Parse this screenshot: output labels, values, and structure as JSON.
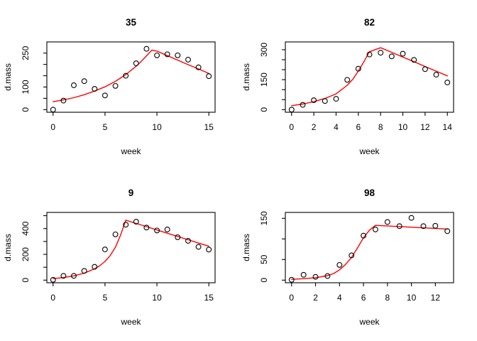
{
  "figure": {
    "background": "#ffffff",
    "point_color": "#000000",
    "fit_line_color": "#ff0000",
    "axis_color": "#000000"
  },
  "chart_data": [
    {
      "type": "scatter",
      "title": "35",
      "xlabel": "week",
      "ylabel": "d.mass",
      "xlim": [
        0,
        15
      ],
      "ylim": [
        0,
        288
      ],
      "grid": false,
      "x_ticks": [
        {
          "v": 0,
          "label": "0"
        },
        {
          "v": 5,
          "label": "5"
        },
        {
          "v": 10,
          "label": "10"
        },
        {
          "v": 15,
          "label": "15"
        }
      ],
      "y_ticks": [
        {
          "v": 0,
          "label": "0"
        },
        {
          "v": 50,
          "label": ""
        },
        {
          "v": 100,
          "label": "100"
        },
        {
          "v": 150,
          "label": ""
        },
        {
          "v": 200,
          "label": ""
        },
        {
          "v": 250,
          "label": "250"
        }
      ],
      "x": [
        0,
        1,
        2,
        3,
        4,
        5,
        6,
        7,
        8,
        9,
        10,
        11,
        12,
        13,
        14,
        15
      ],
      "points": [
        0,
        40,
        108,
        126,
        92,
        63,
        105,
        150,
        205,
        269,
        240,
        245,
        240,
        221,
        187,
        148
      ],
      "fit_line": [
        [
          0,
          35
        ],
        [
          1,
          43
        ],
        [
          2,
          53
        ],
        [
          3,
          66
        ],
        [
          4,
          82
        ],
        [
          5,
          101
        ],
        [
          6,
          125
        ],
        [
          7,
          155
        ],
        [
          8,
          192
        ],
        [
          8.5,
          214
        ],
        [
          9,
          238
        ],
        [
          9.5,
          263
        ],
        [
          10,
          259
        ],
        [
          11,
          239
        ],
        [
          12,
          219
        ],
        [
          13,
          199
        ],
        [
          14,
          180
        ],
        [
          15,
          160
        ]
      ]
    },
    {
      "type": "scatter",
      "title": "82",
      "xlabel": "week",
      "ylabel": "d.mass",
      "xlim": [
        0,
        14
      ],
      "ylim": [
        0,
        326
      ],
      "grid": false,
      "x_ticks": [
        {
          "v": 0,
          "label": "0"
        },
        {
          "v": 2,
          "label": "2"
        },
        {
          "v": 4,
          "label": "4"
        },
        {
          "v": 6,
          "label": "6"
        },
        {
          "v": 8,
          "label": "8"
        },
        {
          "v": 10,
          "label": "10"
        },
        {
          "v": 12,
          "label": "12"
        },
        {
          "v": 14,
          "label": "14"
        }
      ],
      "y_ticks": [
        {
          "v": 0,
          "label": "0"
        },
        {
          "v": 50,
          "label": ""
        },
        {
          "v": 100,
          "label": ""
        },
        {
          "v": 150,
          "label": "150"
        },
        {
          "v": 200,
          "label": ""
        },
        {
          "v": 250,
          "label": ""
        },
        {
          "v": 300,
          "label": "300"
        }
      ],
      "x": [
        0,
        1,
        2,
        3,
        4,
        5,
        6,
        7,
        8,
        9,
        10,
        11,
        12,
        13,
        14
      ],
      "points": [
        0,
        24,
        47,
        43,
        54,
        149,
        205,
        276,
        285,
        267,
        280,
        249,
        203,
        175,
        136
      ],
      "fit_line": [
        [
          0,
          20
        ],
        [
          1,
          28
        ],
        [
          2,
          40
        ],
        [
          3,
          56
        ],
        [
          4,
          79
        ],
        [
          5,
          122
        ],
        [
          5.5,
          152
        ],
        [
          6,
          193
        ],
        [
          6.5,
          240
        ],
        [
          7,
          290
        ],
        [
          8,
          310
        ],
        [
          9,
          287
        ],
        [
          10,
          263
        ],
        [
          11,
          240
        ],
        [
          12,
          216
        ],
        [
          13,
          193
        ],
        [
          14,
          169
        ]
      ]
    },
    {
      "type": "scatter",
      "title": "9",
      "xlabel": "week",
      "ylabel": "d.mass",
      "xlim": [
        0,
        15
      ],
      "ylim": [
        0,
        505
      ],
      "grid": false,
      "x_ticks": [
        {
          "v": 0,
          "label": "0"
        },
        {
          "v": 5,
          "label": "5"
        },
        {
          "v": 10,
          "label": "10"
        },
        {
          "v": 15,
          "label": "15"
        }
      ],
      "y_ticks": [
        {
          "v": 0,
          "label": "0"
        },
        {
          "v": 100,
          "label": ""
        },
        {
          "v": 200,
          "label": "200"
        },
        {
          "v": 300,
          "label": ""
        },
        {
          "v": 400,
          "label": "400"
        },
        {
          "v": 500,
          "label": ""
        }
      ],
      "x": [
        0,
        1,
        2,
        3,
        4,
        5,
        6,
        7,
        8,
        9,
        10,
        11,
        12,
        13,
        14,
        15
      ],
      "points": [
        3,
        33,
        33,
        72,
        103,
        238,
        355,
        430,
        453,
        408,
        385,
        393,
        333,
        305,
        258,
        237
      ],
      "fit_line": [
        [
          0,
          12
        ],
        [
          1,
          20
        ],
        [
          2,
          33
        ],
        [
          3,
          54
        ],
        [
          4,
          88
        ],
        [
          4.5,
          112
        ],
        [
          5,
          145
        ],
        [
          5.5,
          190
        ],
        [
          6,
          255
        ],
        [
          6.5,
          350
        ],
        [
          7,
          465
        ],
        [
          8,
          440
        ],
        [
          9,
          415
        ],
        [
          10,
          389
        ],
        [
          11,
          364
        ],
        [
          12,
          339
        ],
        [
          13,
          313
        ],
        [
          14,
          288
        ],
        [
          15,
          263
        ]
      ]
    },
    {
      "type": "scatter",
      "title": "98",
      "xlabel": "week",
      "ylabel": "d.mass",
      "xlim": [
        0,
        13
      ],
      "ylim": [
        0,
        158
      ],
      "grid": false,
      "x_ticks": [
        {
          "v": 0,
          "label": "0"
        },
        {
          "v": 2,
          "label": "2"
        },
        {
          "v": 4,
          "label": "4"
        },
        {
          "v": 6,
          "label": "6"
        },
        {
          "v": 8,
          "label": "8"
        },
        {
          "v": 10,
          "label": "10"
        },
        {
          "v": 12,
          "label": "12"
        }
      ],
      "y_ticks": [
        {
          "v": 0,
          "label": "0"
        },
        {
          "v": 50,
          "label": "50"
        },
        {
          "v": 100,
          "label": ""
        },
        {
          "v": 150,
          "label": "150"
        }
      ],
      "x": [
        0,
        1,
        2,
        3,
        4,
        5,
        6,
        7,
        8,
        9,
        10,
        11,
        12,
        13
      ],
      "points": [
        1,
        13,
        8,
        10,
        37,
        60,
        108,
        123,
        141,
        131,
        151,
        131,
        132,
        119
      ],
      "fit_line": [
        [
          0,
          2
        ],
        [
          1,
          3.5
        ],
        [
          2,
          6
        ],
        [
          3,
          11
        ],
        [
          3.5,
          16
        ],
        [
          4,
          25
        ],
        [
          4.5,
          38
        ],
        [
          5,
          55
        ],
        [
          5.5,
          78
        ],
        [
          6,
          103
        ],
        [
          6.5,
          121
        ],
        [
          7,
          133
        ],
        [
          13,
          124
        ]
      ]
    }
  ]
}
